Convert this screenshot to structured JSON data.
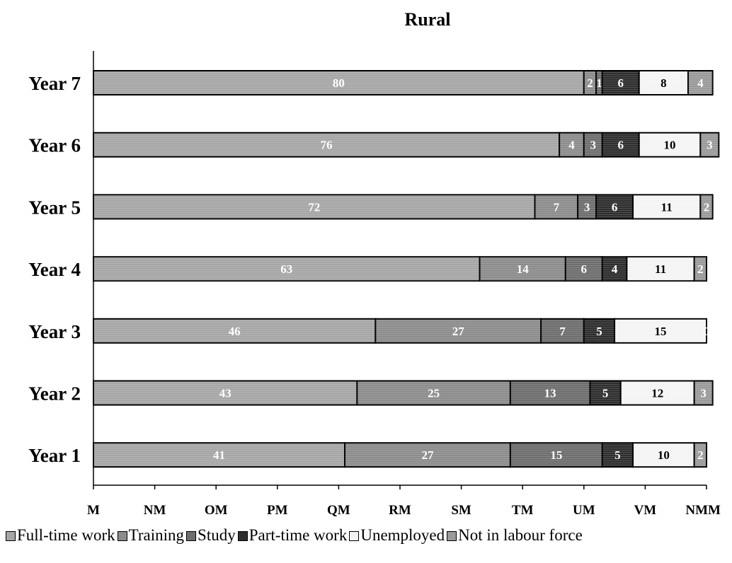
{
  "chart_data": {
    "type": "bar",
    "orientation": "horizontal",
    "stacked": true,
    "title": "Rural",
    "categories": [
      "Year 7",
      "Year 6",
      "Year 5",
      "Year 4",
      "Year 3",
      "Year 2",
      "Year 1"
    ],
    "series": [
      {
        "name": "Full-time work",
        "color": "#a6a6a6",
        "text_color": "#ffffff",
        "values": [
          80,
          76,
          72,
          63,
          46,
          43,
          41
        ]
      },
      {
        "name": "Training",
        "color": "#8c8c8c",
        "text_color": "#ffffff",
        "values": [
          2,
          4,
          7,
          14,
          27,
          25,
          27
        ]
      },
      {
        "name": "Study",
        "color": "#6e6e6e",
        "text_color": "#ffffff",
        "values": [
          1,
          3,
          3,
          6,
          7,
          13,
          15
        ]
      },
      {
        "name": "Part-time work",
        "color": "#2e2e2e",
        "text_color": "#ffffff",
        "values": [
          6,
          6,
          6,
          4,
          5,
          5,
          5
        ]
      },
      {
        "name": "Unemployed",
        "color": "#f4f4f4",
        "text_color": "#000000",
        "values": [
          8,
          10,
          11,
          11,
          15,
          12,
          10
        ]
      },
      {
        "name": "Not in labour force",
        "color": "#9a9a9a",
        "text_color": "#ffffff",
        "values": [
          4,
          3,
          2,
          2,
          0,
          3,
          2
        ]
      }
    ],
    "xlim": [
      0,
      100
    ],
    "x_tick_labels": [
      "M",
      "NM",
      "OM",
      "PM",
      "QM",
      "RM",
      "SM",
      "TM",
      "UM",
      "VM",
      "NMM"
    ],
    "legend_position": "bottom",
    "grid": false
  }
}
